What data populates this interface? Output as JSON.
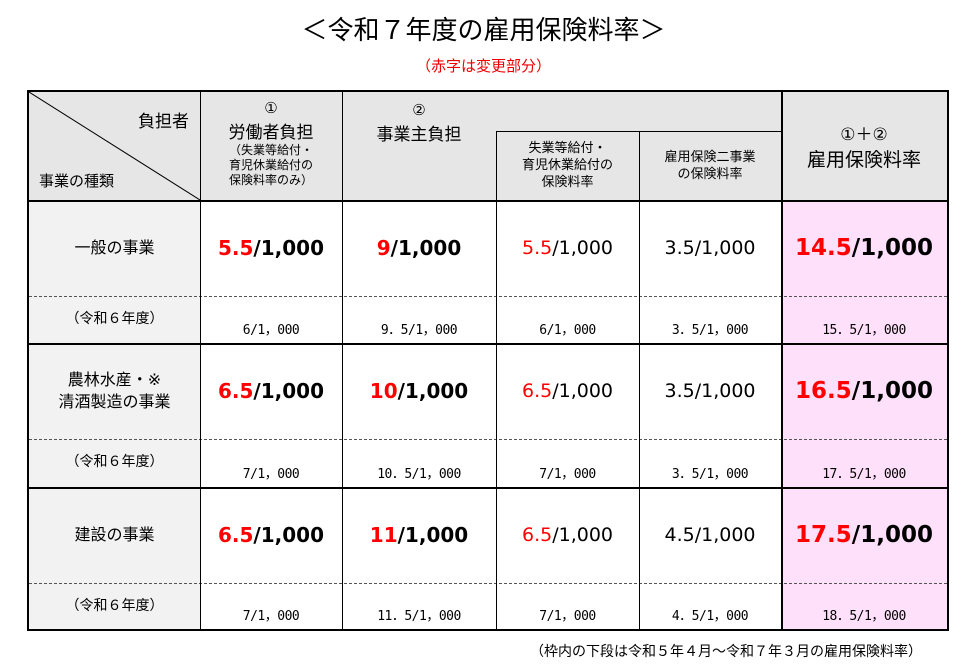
{
  "title": "＜令和７年度の雇用保険料率＞",
  "subtitle": "（赤字は変更部分）",
  "header": {
    "diag_top": "負担者",
    "diag_bottom": "事業の種類",
    "worker_num": "①",
    "worker": "労働者負担",
    "worker_note": "（失業等給付・\n育児休業給付の\n保険料率のみ）",
    "employer_num": "②",
    "employer": "事業主負担",
    "emp_sub1": "失業等給付・\n育児休業給付の\n保険料率",
    "emp_sub2": "雇用保険二事業\nの保険料率",
    "total_num": "①＋②",
    "total": "雇用保険料率"
  },
  "rows": [
    {
      "label": "一般の事業",
      "worker": {
        "red": "5.5",
        "rest": "/1,000"
      },
      "employer": {
        "red": "9",
        "rest": "/1,000"
      },
      "sub1": {
        "red": "5.5",
        "rest": "/1,000"
      },
      "sub2": "3.5/1,000",
      "total": {
        "red": "14.5",
        "rest": "/1,000"
      },
      "prev_label": "（令和６年度）",
      "prev": [
        "6/1，000",
        "9．5/1，000",
        "6/1，000",
        "3．5/1，000",
        "15．5/1，000"
      ]
    },
    {
      "label": "農林水産・※\n清酒製造の事業",
      "worker": {
        "red": "6.5",
        "rest": "/1,000"
      },
      "employer": {
        "red": "10",
        "rest": "/1,000"
      },
      "sub1": {
        "red": "6.5",
        "rest": "/1,000"
      },
      "sub2": "3.5/1,000",
      "total": {
        "red": "16.5",
        "rest": "/1,000"
      },
      "prev_label": "（令和６年度）",
      "prev": [
        "7/1，000",
        "10．5/1，000",
        "7/1，000",
        "3．5/1，000",
        "17．5/1，000"
      ]
    },
    {
      "label": "建設の事業",
      "worker": {
        "red": "6.5",
        "rest": "/1,000"
      },
      "employer": {
        "red": "11",
        "rest": "/1,000"
      },
      "sub1": {
        "red": "6.5",
        "rest": "/1,000"
      },
      "sub2": "4.5/1,000",
      "total": {
        "red": "17.5",
        "rest": "/1,000"
      },
      "prev_label": "（令和６年度）",
      "prev": [
        "7/1，000",
        "11．5/1，000",
        "7/1，000",
        "4．5/1，000",
        "18．5/1，000"
      ]
    }
  ],
  "footnote": "（枠内の下段は令和５年４月～令和７年３月の雇用保険料率）",
  "colors": {
    "red": "#ff0000",
    "pink": "#ffe0fb",
    "header": "#e6e6e6"
  }
}
